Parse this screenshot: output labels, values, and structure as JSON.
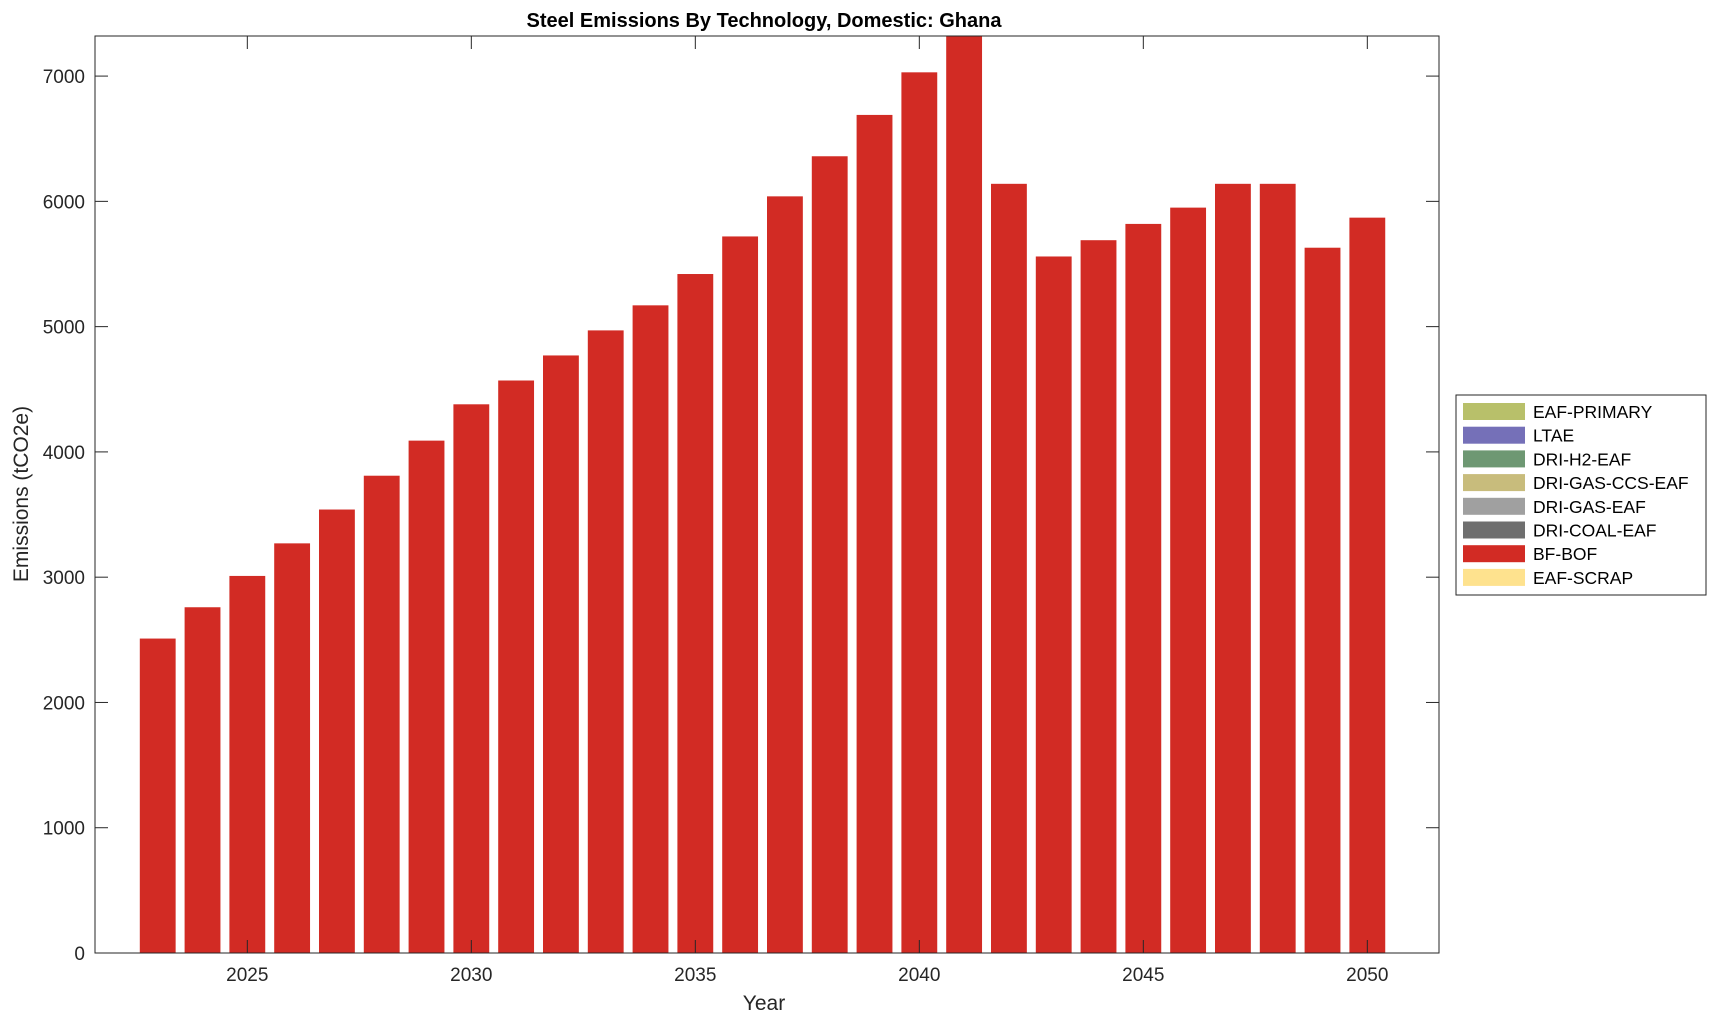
{
  "chart_data": {
    "type": "bar",
    "title": "Steel Emissions By Technology, Domestic: Ghana",
    "xlabel": "Year",
    "ylabel": "Emissions (tCO2e)",
    "xlim": [
      2021.6,
      2051.6
    ],
    "ylim": [
      0,
      7320
    ],
    "xticks": [
      2025,
      2030,
      2035,
      2040,
      2045,
      2050
    ],
    "yticks": [
      0,
      1000,
      2000,
      3000,
      4000,
      5000,
      6000,
      7000
    ],
    "legend_position": "right",
    "grid": false,
    "categories": [
      2023,
      2024,
      2025,
      2026,
      2027,
      2028,
      2029,
      2030,
      2031,
      2032,
      2033,
      2034,
      2035,
      2036,
      2037,
      2038,
      2039,
      2040,
      2041,
      2042,
      2043,
      2044,
      2045,
      2046,
      2047,
      2048,
      2049,
      2050
    ],
    "series": [
      {
        "name": "EAF-PRIMARY",
        "color": "#b8c06a",
        "values": [
          0,
          0,
          0,
          0,
          0,
          0,
          0,
          0,
          0,
          0,
          0,
          0,
          0,
          0,
          0,
          0,
          0,
          0,
          0,
          0,
          0,
          0,
          0,
          0,
          0,
          0,
          0,
          0
        ]
      },
      {
        "name": "LTAE",
        "color": "#7570b8",
        "values": [
          0,
          0,
          0,
          0,
          0,
          0,
          0,
          0,
          0,
          0,
          0,
          0,
          0,
          0,
          0,
          0,
          0,
          0,
          0,
          0,
          0,
          0,
          0,
          0,
          0,
          0,
          0,
          0
        ]
      },
      {
        "name": "DRI-H2-EAF",
        "color": "#6e9873",
        "values": [
          0,
          0,
          0,
          0,
          0,
          0,
          0,
          0,
          0,
          0,
          0,
          0,
          0,
          0,
          0,
          0,
          0,
          0,
          0,
          0,
          0,
          0,
          0,
          0,
          0,
          0,
          0,
          0
        ]
      },
      {
        "name": "DRI-GAS-CCS-EAF",
        "color": "#c8bc7c",
        "values": [
          0,
          0,
          0,
          0,
          0,
          0,
          0,
          0,
          0,
          0,
          0,
          0,
          0,
          0,
          0,
          0,
          0,
          0,
          0,
          0,
          0,
          0,
          0,
          0,
          0,
          0,
          0,
          0
        ]
      },
      {
        "name": "DRI-GAS-EAF",
        "color": "#a0a0a0",
        "values": [
          0,
          0,
          0,
          0,
          0,
          0,
          0,
          0,
          0,
          0,
          0,
          0,
          0,
          0,
          0,
          0,
          0,
          0,
          0,
          0,
          0,
          0,
          0,
          0,
          0,
          0,
          0,
          0
        ]
      },
      {
        "name": "DRI-COAL-EAF",
        "color": "#6f6f6f",
        "values": [
          0,
          0,
          0,
          0,
          0,
          0,
          0,
          0,
          0,
          0,
          0,
          0,
          0,
          0,
          0,
          0,
          0,
          0,
          0,
          0,
          0,
          0,
          0,
          0,
          0,
          0,
          0,
          0
        ]
      },
      {
        "name": "BF-BOF",
        "color": "#d22b24",
        "values": [
          2510,
          2760,
          3010,
          3270,
          3540,
          3810,
          4090,
          4380,
          4570,
          4770,
          4970,
          5170,
          5420,
          5720,
          6040,
          6360,
          6690,
          7030,
          7340,
          6140,
          5560,
          5690,
          5820,
          5950,
          6140,
          6140,
          5630,
          5870
        ]
      },
      {
        "name": "EAF-SCRAP",
        "color": "#fee28e",
        "values": [
          0,
          0,
          0,
          0,
          0,
          0,
          0,
          0,
          0,
          0,
          0,
          0,
          0,
          0,
          0,
          0,
          0,
          0,
          0,
          0,
          0,
          0,
          0,
          0,
          0,
          0,
          0,
          0
        ]
      }
    ]
  }
}
